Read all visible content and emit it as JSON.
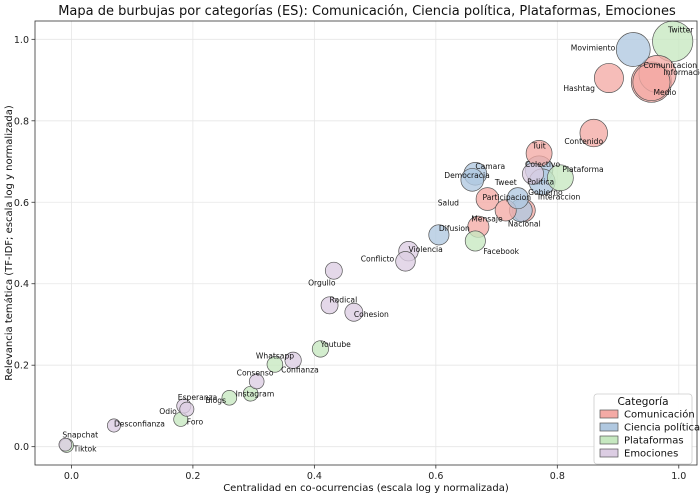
{
  "chart_data": {
    "type": "scatter",
    "subtype": "bubble",
    "title": "Mapa de burbujas por categorías (ES): Comunicación, Ciencia política, Plataformas, Emociones",
    "xlabel": "Centralidad en co-ocurrencias (escala log y normalizada)",
    "ylabel": "Relevancia temática (TF-IDF; escala log y normalizada)",
    "xlim": [
      -0.06,
      1.03
    ],
    "ylim": [
      -0.045,
      1.045
    ],
    "xticks": [
      "0.0",
      "0.2",
      "0.4",
      "0.6",
      "0.8",
      "1.0"
    ],
    "xtick_values": [
      0,
      0.2,
      0.4,
      0.6,
      0.8,
      1.0
    ],
    "yticks": [
      "0.0",
      "0.2",
      "0.4",
      "0.6",
      "0.8",
      "1.0"
    ],
    "ytick_values": [
      0,
      0.2,
      0.4,
      0.6,
      0.8,
      1.0
    ],
    "grid": true,
    "legend": {
      "title": "Categoría",
      "position": "lower-right",
      "entries": [
        "Comunicación",
        "Ciencia política",
        "Plataformas",
        "Emociones"
      ]
    },
    "colors": {
      "Comunicación": "#f4aaa5",
      "Ciencia política": "#b0c8e0",
      "Plataformas": "#c6e8c0",
      "Emociones": "#dccde3",
      "edge": "#555555"
    },
    "series": [
      {
        "name": "Comunicación",
        "points": [
          {
            "label": "Informacion",
            "x": 0.965,
            "y": 0.915,
            "size": 0.85
          },
          {
            "label": "Comunicacion",
            "x": 0.955,
            "y": 0.895,
            "size": 0.95
          },
          {
            "label": "Medio",
            "x": 0.955,
            "y": 0.895,
            "size": 0.85
          },
          {
            "label": "Hashtag",
            "x": 0.885,
            "y": 0.905,
            "size": 0.6
          },
          {
            "label": "Contenido",
            "x": 0.86,
            "y": 0.77,
            "size": 0.55
          },
          {
            "label": "Tuit",
            "x": 0.77,
            "y": 0.72,
            "size": 0.5
          },
          {
            "label": "Participacion",
            "x": 0.685,
            "y": 0.608,
            "size": 0.4
          },
          {
            "label": "Mensaje",
            "x": 0.715,
            "y": 0.58,
            "size": 0.35
          },
          {
            "label": "Interaccion",
            "x": 0.745,
            "y": 0.58,
            "size": 0.4
          },
          {
            "label": "Salud",
            "x": 0.67,
            "y": 0.54,
            "size": 0.35
          }
        ]
      },
      {
        "name": "Ciencia política",
        "points": [
          {
            "label": "Movimiento",
            "x": 0.925,
            "y": 0.975,
            "size": 0.75
          },
          {
            "label": "Camara",
            "x": 0.665,
            "y": 0.67,
            "size": 0.4
          },
          {
            "label": "Democracia",
            "x": 0.66,
            "y": 0.655,
            "size": 0.4
          },
          {
            "label": "Politica",
            "x": 0.77,
            "y": 0.68,
            "size": 0.55
          },
          {
            "label": "Gobierno",
            "x": 0.775,
            "y": 0.65,
            "size": 0.5
          },
          {
            "label": "Tweet",
            "x": 0.735,
            "y": 0.61,
            "size": 0.35
          },
          {
            "label": "Nacional",
            "x": 0.74,
            "y": 0.58,
            "size": 0.4
          },
          {
            "label": "Difusion",
            "x": 0.605,
            "y": 0.52,
            "size": 0.32
          }
        ]
      },
      {
        "name": "Plataformas",
        "points": [
          {
            "label": "Twitter",
            "x": 0.99,
            "y": 0.995,
            "size": 0.95
          },
          {
            "label": "Plataforma",
            "x": 0.805,
            "y": 0.66,
            "size": 0.5
          },
          {
            "label": "Facebook",
            "x": 0.665,
            "y": 0.505,
            "size": 0.32
          },
          {
            "label": "Youtube",
            "x": 0.41,
            "y": 0.24,
            "size": 0.2
          },
          {
            "label": "Whatsapp",
            "x": 0.335,
            "y": 0.202,
            "size": 0.18
          },
          {
            "label": "Instagram",
            "x": 0.295,
            "y": 0.13,
            "size": 0.15
          },
          {
            "label": "Blogs",
            "x": 0.26,
            "y": 0.12,
            "size": 0.15
          },
          {
            "label": "Foro",
            "x": 0.18,
            "y": 0.067,
            "size": 0.13
          },
          {
            "label": "Tiktok",
            "x": -0.008,
            "y": 0.003,
            "size": 0.12
          }
        ]
      },
      {
        "name": "Emociones",
        "points": [
          {
            "label": "Colectivo",
            "x": 0.76,
            "y": 0.67,
            "size": 0.35
          },
          {
            "label": "Violencia",
            "x": 0.555,
            "y": 0.48,
            "size": 0.3
          },
          {
            "label": "Conflicto",
            "x": 0.55,
            "y": 0.455,
            "size": 0.3
          },
          {
            "label": "Orgullo",
            "x": 0.432,
            "y": 0.432,
            "size": 0.22
          },
          {
            "label": "Radical",
            "x": 0.425,
            "y": 0.347,
            "size": 0.22
          },
          {
            "label": "Cohesion",
            "x": 0.465,
            "y": 0.33,
            "size": 0.25
          },
          {
            "label": "Confianza",
            "x": 0.365,
            "y": 0.212,
            "size": 0.2
          },
          {
            "label": "Consenso",
            "x": 0.305,
            "y": 0.16,
            "size": 0.15
          },
          {
            "label": "Esperanza",
            "x": 0.185,
            "y": 0.1,
            "size": 0.13
          },
          {
            "label": "Odio",
            "x": 0.19,
            "y": 0.092,
            "size": 0.13
          },
          {
            "label": "Desconfianza",
            "x": 0.07,
            "y": 0.052,
            "size": 0.1
          },
          {
            "label": "Snapchat",
            "x": -0.01,
            "y": 0.005,
            "size": 0.09
          }
        ]
      }
    ]
  }
}
